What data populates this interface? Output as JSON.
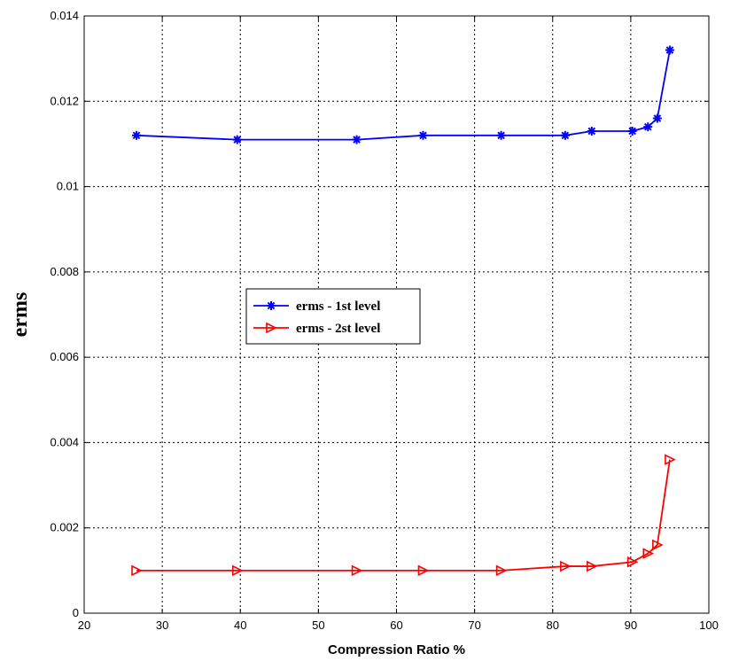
{
  "chart_data": {
    "type": "line",
    "title": "",
    "xlabel": "Compression Ratio %",
    "ylabel": "erms",
    "xlim": [
      20,
      100
    ],
    "ylim": [
      0,
      0.014
    ],
    "xticks": [
      "20",
      "30",
      "40",
      "50",
      "60",
      "70",
      "80",
      "90",
      "100"
    ],
    "yticks": [
      "0",
      "0.002",
      "0.004",
      "0.006",
      "0.008",
      "0.01",
      "0.012",
      "0.014"
    ],
    "grid": true,
    "legend_position": "center-left",
    "series": [
      {
        "name": "erms - 1st level",
        "color": "#0000ff",
        "marker": "asterisk",
        "x": [
          26.7,
          39.6,
          54.9,
          63.4,
          73.4,
          81.6,
          85.0,
          90.2,
          92.2,
          93.4,
          95.0
        ],
        "y": [
          0.0112,
          0.0111,
          0.0111,
          0.0112,
          0.0112,
          0.0112,
          0.0113,
          0.0113,
          0.0114,
          0.0116,
          0.0132
        ]
      },
      {
        "name": "erms - 2st level",
        "color": "#ff0000",
        "marker": "triangle-right",
        "x": [
          26.7,
          39.6,
          54.9,
          63.4,
          73.4,
          81.6,
          85.0,
          90.2,
          92.2,
          93.4,
          95.0
        ],
        "y": [
          0.001,
          0.001,
          0.001,
          0.001,
          0.001,
          0.0011,
          0.0011,
          0.0012,
          0.0014,
          0.0016,
          0.0036
        ]
      }
    ]
  }
}
